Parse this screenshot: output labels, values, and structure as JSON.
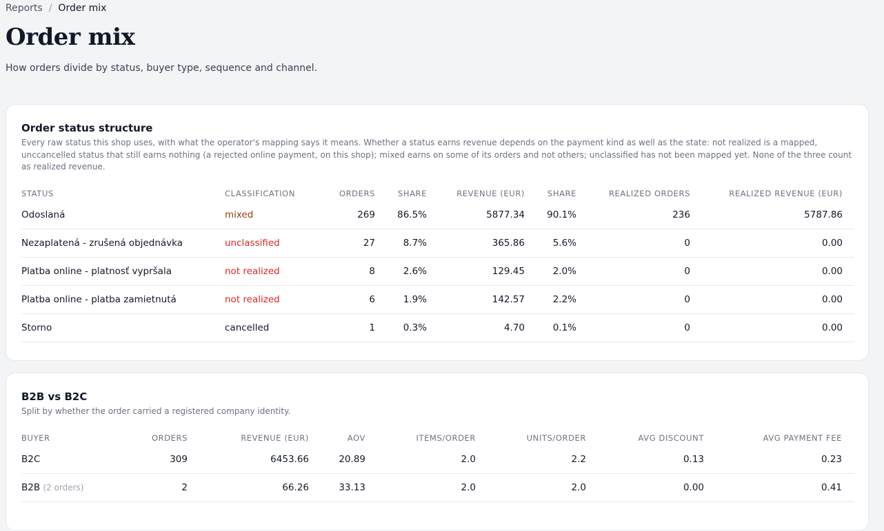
{
  "breadcrumb": {
    "parent": "Reports",
    "separator": "/",
    "current": "Order mix"
  },
  "page": {
    "title": "Order mix",
    "subtitle": "How orders divide by status, buyer type, sequence and channel."
  },
  "status_card": {
    "title": "Order status structure",
    "description": "Every raw status this shop uses, with what the operator's mapping says it means. Whether a status earns revenue depends on the payment kind as well as the state: not realized is a mapped, unccancelled status that still earns nothing (a rejected online payment, on this shop); mixed earns on some of its orders and not others; unclassified has not been mapped yet. None of the three count as realized revenue.",
    "columns": [
      "Status",
      "Classification",
      "Orders",
      "Share",
      "Revenue (EUR)",
      "Share",
      "Realized orders",
      "Realized revenue (EUR)"
    ],
    "rows": [
      {
        "status": "Odoslaná",
        "classification": "mixed",
        "orders": "269",
        "share": "86.5%",
        "revenue": "5877.34",
        "rev_share": "90.1%",
        "realized_orders": "236",
        "realized_revenue": "5787.86"
      },
      {
        "status": "Nezaplatená - zrušená objednávka",
        "classification": "unclassified",
        "orders": "27",
        "share": "8.7%",
        "revenue": "365.86",
        "rev_share": "5.6%",
        "realized_orders": "0",
        "realized_revenue": "0.00"
      },
      {
        "status": "Platba online - platnosť vypršala",
        "classification": "not realized",
        "orders": "8",
        "share": "2.6%",
        "revenue": "129.45",
        "rev_share": "2.0%",
        "realized_orders": "0",
        "realized_revenue": "0.00"
      },
      {
        "status": "Platba online - platba zamietnutá",
        "classification": "not realized",
        "orders": "6",
        "share": "1.9%",
        "revenue": "142.57",
        "rev_share": "2.2%",
        "realized_orders": "0",
        "realized_revenue": "0.00"
      },
      {
        "status": "Storno",
        "classification": "cancelled",
        "orders": "1",
        "share": "0.3%",
        "revenue": "4.70",
        "rev_share": "0.1%",
        "realized_orders": "0",
        "realized_revenue": "0.00"
      }
    ]
  },
  "buyer_card": {
    "title": "B2B vs B2C",
    "description": "Split by whether the order carried a registered company identity.",
    "columns": [
      "Buyer",
      "Orders",
      "Revenue (EUR)",
      "AOV",
      "Items/order",
      "Units/order",
      "Avg discount",
      "Avg payment fee"
    ],
    "rows": [
      {
        "buyer": "B2C",
        "note": "",
        "orders": "309",
        "revenue": "6453.66",
        "aov": "20.89",
        "items": "2.0",
        "units": "2.2",
        "discount": "0.13",
        "fee": "0.23"
      },
      {
        "buyer": "B2B",
        "note": "(2 orders)",
        "orders": "2",
        "revenue": "66.26",
        "aov": "33.13",
        "items": "2.0",
        "units": "2.0",
        "discount": "0.00",
        "fee": "0.41"
      }
    ]
  },
  "colors": {
    "mixed": "#92400e",
    "unclassified": "#dc2626",
    "not_realized": "#dc2626"
  }
}
